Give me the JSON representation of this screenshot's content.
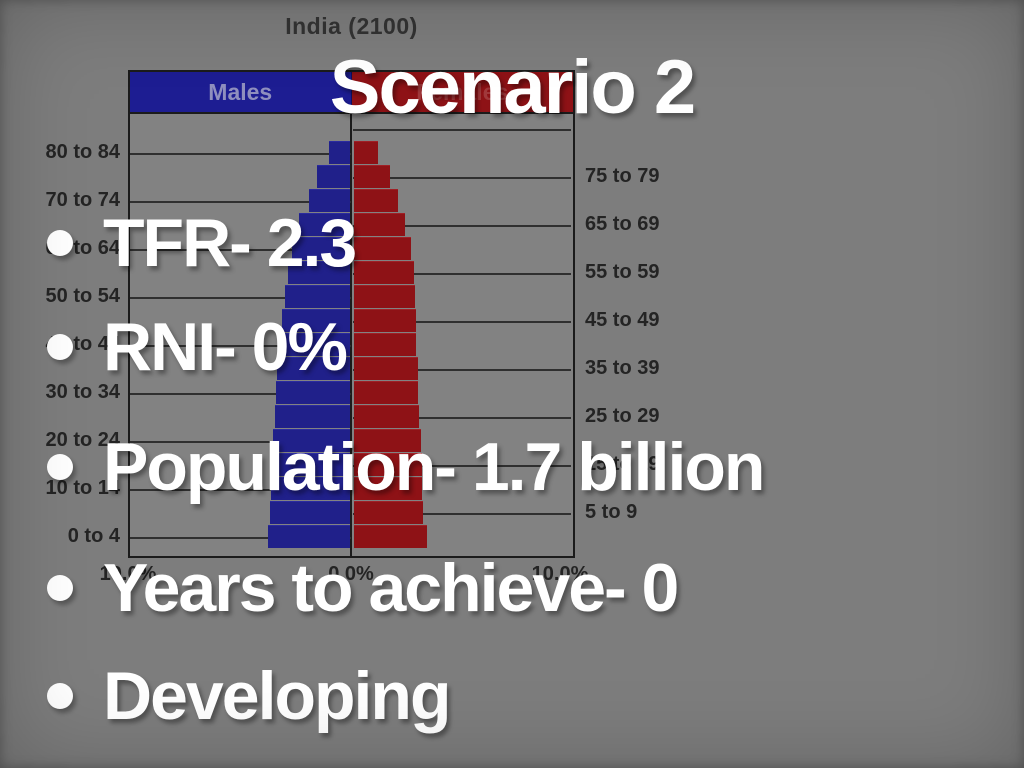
{
  "slide": {
    "title": "Scenario 2",
    "bullets": [
      "TFR- 2.3",
      "RNI- 0%",
      "Population- 1.7 billion",
      "Years to achieve- 0",
      "Developing"
    ],
    "background_color": "#7d7d7d",
    "text_color": "#ffffff"
  },
  "chart": {
    "title": "India (2100)",
    "legend_males": "Males",
    "legend_females": "Females",
    "male_color": "#20208a",
    "female_color": "#8e1216"
  },
  "chart_data": {
    "type": "bar",
    "subtype": "population-pyramid",
    "title": "India (2100)",
    "orientation": "horizontal, males left / females right of center axis",
    "x_axis_tick_labels": [
      "10.0%",
      "0.0%",
      "10.0%"
    ],
    "x_max_percent": 10,
    "left_axis_labels": [
      "80 to 84",
      "70 to 74",
      "60 to 64",
      "50 to 54",
      "40 to 44",
      "30 to 34",
      "20 to 24",
      "10 to 14",
      "0 to 4"
    ],
    "right_axis_labels": [
      "75 to 79",
      "65 to 69",
      "55 to 59",
      "45 to 49",
      "35 to 39",
      "25 to 29",
      "15 to 19",
      "5 to 9"
    ],
    "categories_bottom_to_top": [
      "0 to 4",
      "5 to 9",
      "10 to 14",
      "15 to 19",
      "20 to 24",
      "25 to 29",
      "30 to 34",
      "35 to 39",
      "40 to 44",
      "45 to 49",
      "50 to 54",
      "55 to 59",
      "60 to 64",
      "65 to 69",
      "70 to 74",
      "75 to 79",
      "80 to 84"
    ],
    "series": [
      {
        "name": "Males",
        "side": "left",
        "color": "#20208a",
        "values_percent_bottom_to_top": [
          3.7,
          3.6,
          3.55,
          3.5,
          3.45,
          3.4,
          3.35,
          3.3,
          3.15,
          3.05,
          2.95,
          2.8,
          2.6,
          2.3,
          1.85,
          1.5,
          0.95
        ]
      },
      {
        "name": "Females",
        "side": "right",
        "color": "#8e1216",
        "values_percent_bottom_to_top": [
          3.3,
          3.1,
          3.05,
          3.05,
          3.0,
          2.95,
          2.9,
          2.9,
          2.8,
          2.8,
          2.75,
          2.7,
          2.55,
          2.3,
          2.0,
          1.6,
          1.1
        ]
      }
    ],
    "grid": "alternating half-width horizontal gridlines every 10-year group",
    "legend_position": "column headers above pyramid (Males blue left, Females red right)"
  }
}
